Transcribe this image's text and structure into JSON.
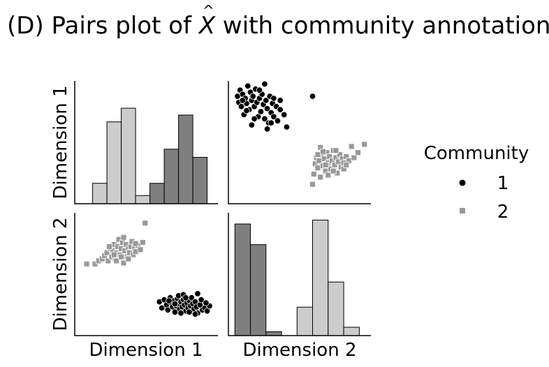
{
  "chart_data": {
    "type": "pairs",
    "title_prefix": "(D) Pairs plot of ",
    "title_symbol": "X",
    "title_suffix": " with community annotation",
    "variables": [
      "Dimension 1",
      "Dimension 2"
    ],
    "legend": {
      "title": "Community",
      "placement": "right",
      "entries": [
        {
          "label": "1",
          "marker": "circle",
          "color": "#000000"
        },
        {
          "label": "2",
          "marker": "square",
          "color": "#999999"
        }
      ]
    },
    "colors": {
      "hist_dark": "#7f7f7f",
      "hist_light": "#cccccc",
      "community1": "#000000",
      "community2": "#999999"
    },
    "grid": false,
    "hist_dimension1": {
      "xlim": [
        -0.15,
        1.05
      ],
      "ylim": [
        0,
        18
      ],
      "bins": [
        {
          "x0": 0.0,
          "x1": 0.12,
          "community": "2",
          "count": 3
        },
        {
          "x0": 0.12,
          "x1": 0.24,
          "community": "2",
          "count": 12
        },
        {
          "x0": 0.24,
          "x1": 0.36,
          "community": "2",
          "count": 14
        },
        {
          "x0": 0.36,
          "x1": 0.48,
          "community": "2",
          "count": 1.2
        },
        {
          "x0": 0.48,
          "x1": 0.6,
          "community": "1",
          "count": 3
        },
        {
          "x0": 0.6,
          "x1": 0.72,
          "community": "1",
          "count": 8
        },
        {
          "x0": 0.72,
          "x1": 0.84,
          "community": "1",
          "count": 13
        },
        {
          "x0": 0.84,
          "x1": 0.96,
          "community": "1",
          "count": 6.8
        }
      ]
    },
    "hist_dimension2": {
      "xlim": [
        -0.05,
        1.05
      ],
      "ylim": [
        0,
        22
      ],
      "bins": [
        {
          "x0": 0.0,
          "x1": 0.12,
          "community": "1",
          "count": 20
        },
        {
          "x0": 0.12,
          "x1": 0.24,
          "community": "1",
          "count": 16.3
        },
        {
          "x0": 0.24,
          "x1": 0.36,
          "community": "1",
          "count": 0.7
        },
        {
          "x0": 0.48,
          "x1": 0.6,
          "community": "2",
          "count": 5.1
        },
        {
          "x0": 0.6,
          "x1": 0.72,
          "community": "2",
          "count": 20.7
        },
        {
          "x0": 0.72,
          "x1": 0.84,
          "community": "2",
          "count": 9.6
        },
        {
          "x0": 0.84,
          "x1": 0.96,
          "community": "2",
          "count": 1.5
        }
      ]
    },
    "scatter_dim1_vs_dim2": {
      "xlabel": "Dimension 1",
      "ylabel": "Dimension 2",
      "xlim": [
        -0.15,
        1.05
      ],
      "ylim": [
        -0.15,
        1.05
      ],
      "community1": [
        [
          0.56,
          0.18
        ],
        [
          0.58,
          0.12
        ],
        [
          0.6,
          0.2
        ],
        [
          0.62,
          0.15
        ],
        [
          0.63,
          0.1
        ],
        [
          0.65,
          0.22
        ],
        [
          0.66,
          0.17
        ],
        [
          0.67,
          0.13
        ],
        [
          0.68,
          0.19
        ],
        [
          0.69,
          0.08
        ],
        [
          0.7,
          0.14
        ],
        [
          0.71,
          0.21
        ],
        [
          0.72,
          0.16
        ],
        [
          0.73,
          0.11
        ],
        [
          0.74,
          0.18
        ],
        [
          0.75,
          0.13
        ],
        [
          0.76,
          0.2
        ],
        [
          0.77,
          0.15
        ],
        [
          0.78,
          0.09
        ],
        [
          0.79,
          0.17
        ],
        [
          0.8,
          0.12
        ],
        [
          0.81,
          0.19
        ],
        [
          0.82,
          0.14
        ],
        [
          0.83,
          0.22
        ],
        [
          0.84,
          0.16
        ],
        [
          0.85,
          0.11
        ],
        [
          0.86,
          0.18
        ],
        [
          0.87,
          0.13
        ],
        [
          0.88,
          0.07
        ],
        [
          0.9,
          0.15
        ],
        [
          0.92,
          0.1
        ],
        [
          0.94,
          0.12
        ],
        [
          0.96,
          0.09
        ],
        [
          0.98,
          0.14
        ],
        [
          0.72,
          0.24
        ],
        [
          0.76,
          0.25
        ],
        [
          0.81,
          0.08
        ],
        [
          0.69,
          0.16
        ],
        [
          0.64,
          0.19
        ],
        [
          0.88,
          0.26
        ],
        [
          0.91,
          0.2
        ],
        [
          0.86,
          0.06
        ],
        [
          0.74,
          0.07
        ],
        [
          0.95,
          0.17
        ],
        [
          0.78,
          0.22
        ]
      ],
      "community2": [
        [
          -0.05,
          0.55
        ],
        [
          0.02,
          0.55
        ],
        [
          0.05,
          0.58
        ],
        [
          0.08,
          0.6
        ],
        [
          0.1,
          0.63
        ],
        [
          0.12,
          0.66
        ],
        [
          0.13,
          0.58
        ],
        [
          0.15,
          0.7
        ],
        [
          0.16,
          0.62
        ],
        [
          0.17,
          0.68
        ],
        [
          0.18,
          0.74
        ],
        [
          0.19,
          0.6
        ],
        [
          0.2,
          0.66
        ],
        [
          0.21,
          0.72
        ],
        [
          0.22,
          0.79
        ],
        [
          0.23,
          0.64
        ],
        [
          0.24,
          0.7
        ],
        [
          0.25,
          0.76
        ],
        [
          0.26,
          0.56
        ],
        [
          0.27,
          0.68
        ],
        [
          0.28,
          0.74
        ],
        [
          0.29,
          0.62
        ],
        [
          0.3,
          0.7
        ],
        [
          0.31,
          0.66
        ],
        [
          0.32,
          0.72
        ],
        [
          0.33,
          0.77
        ],
        [
          0.34,
          0.64
        ],
        [
          0.35,
          0.71
        ],
        [
          0.36,
          0.67
        ],
        [
          0.38,
          0.73
        ],
        [
          0.4,
          0.69
        ],
        [
          0.42,
          0.76
        ],
        [
          0.44,
          0.95
        ],
        [
          0.14,
          0.72
        ],
        [
          0.2,
          0.58
        ],
        [
          0.26,
          0.81
        ],
        [
          0.3,
          0.6
        ],
        [
          0.24,
          0.62
        ],
        [
          0.18,
          0.64
        ],
        [
          0.36,
          0.75
        ]
      ]
    },
    "scatter_dim2_vs_dim1": {
      "xlabel": "Dimension 2",
      "ylabel": "Dimension 1",
      "xlim": [
        -0.05,
        1.05
      ],
      "ylim": [
        -0.15,
        1.05
      ],
      "community1": [
        [
          0.02,
          0.9
        ],
        [
          0.03,
          0.84
        ],
        [
          0.04,
          0.96
        ],
        [
          0.05,
          0.8
        ],
        [
          0.06,
          0.92
        ],
        [
          0.07,
          0.72
        ],
        [
          0.08,
          0.88
        ],
        [
          0.09,
          0.83
        ],
        [
          0.1,
          1.0
        ],
        [
          0.11,
          0.77
        ],
        [
          0.12,
          0.94
        ],
        [
          0.13,
          0.86
        ],
        [
          0.14,
          0.9
        ],
        [
          0.15,
          0.8
        ],
        [
          0.16,
          0.97
        ],
        [
          0.17,
          0.84
        ],
        [
          0.18,
          0.7
        ],
        [
          0.19,
          0.88
        ],
        [
          0.2,
          0.75
        ],
        [
          0.21,
          0.92
        ],
        [
          0.22,
          0.82
        ],
        [
          0.23,
          0.68
        ],
        [
          0.24,
          0.86
        ],
        [
          0.25,
          0.78
        ],
        [
          0.26,
          0.64
        ],
        [
          0.27,
          0.9
        ],
        [
          0.28,
          0.74
        ],
        [
          0.29,
          0.83
        ],
        [
          0.3,
          0.7
        ],
        [
          0.32,
          0.8
        ],
        [
          0.33,
          0.66
        ],
        [
          0.35,
          0.77
        ],
        [
          0.38,
          0.72
        ],
        [
          0.4,
          0.6
        ],
        [
          0.6,
          0.9
        ],
        [
          0.25,
          0.58
        ],
        [
          0.15,
          0.68
        ],
        [
          0.09,
          0.76
        ],
        [
          0.19,
          0.96
        ],
        [
          0.3,
          0.88
        ],
        [
          0.23,
          1.02
        ],
        [
          0.13,
          0.62
        ],
        [
          0.35,
          0.86
        ],
        [
          0.28,
          0.64
        ],
        [
          0.06,
          0.86
        ]
      ],
      "community2": [
        [
          0.6,
          0.04
        ],
        [
          0.61,
          0.14
        ],
        [
          0.62,
          0.24
        ],
        [
          0.63,
          0.3
        ],
        [
          0.64,
          0.2
        ],
        [
          0.65,
          0.27
        ],
        [
          0.66,
          0.11
        ],
        [
          0.67,
          0.33
        ],
        [
          0.68,
          0.22
        ],
        [
          0.69,
          0.29
        ],
        [
          0.7,
          0.17
        ],
        [
          0.71,
          0.35
        ],
        [
          0.72,
          0.25
        ],
        [
          0.73,
          0.31
        ],
        [
          0.74,
          0.19
        ],
        [
          0.75,
          0.27
        ],
        [
          0.76,
          0.37
        ],
        [
          0.77,
          0.23
        ],
        [
          0.78,
          0.3
        ],
        [
          0.79,
          0.15
        ],
        [
          0.8,
          0.26
        ],
        [
          0.81,
          0.33
        ],
        [
          0.82,
          0.21
        ],
        [
          0.83,
          0.29
        ],
        [
          0.84,
          0.25
        ],
        [
          0.86,
          0.31
        ],
        [
          0.88,
          0.27
        ],
        [
          0.9,
          0.41
        ],
        [
          0.92,
          0.3
        ],
        [
          0.95,
          0.35
        ],
        [
          1.0,
          0.43
        ],
        [
          0.66,
          0.4
        ],
        [
          0.72,
          0.13
        ],
        [
          0.78,
          0.37
        ],
        [
          0.7,
          0.23
        ],
        [
          0.64,
          0.33
        ],
        [
          0.84,
          0.19
        ],
        [
          0.76,
          0.17
        ],
        [
          0.68,
          0.36
        ],
        [
          0.86,
          0.23
        ]
      ]
    }
  }
}
